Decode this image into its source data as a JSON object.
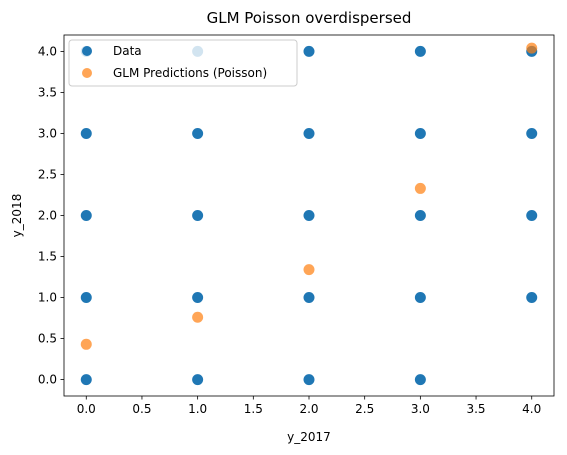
{
  "chart_data": {
    "type": "scatter",
    "title": "GLM Poisson overdispersed",
    "xlabel": "y_2017",
    "ylabel": "y_2018",
    "xlim": [
      -0.2,
      4.2
    ],
    "ylim": [
      -0.2,
      4.2
    ],
    "xticks": [
      0.0,
      0.5,
      1.0,
      1.5,
      2.0,
      2.5,
      3.0,
      3.5,
      4.0
    ],
    "yticks": [
      0.0,
      0.5,
      1.0,
      1.5,
      2.0,
      2.5,
      3.0,
      3.5,
      4.0
    ],
    "xtick_labels": [
      "0.0",
      "0.5",
      "1.0",
      "1.5",
      "2.0",
      "2.5",
      "3.0",
      "3.5",
      "4.0"
    ],
    "ytick_labels": [
      "0.0",
      "0.5",
      "1.0",
      "1.5",
      "2.0",
      "2.5",
      "3.0",
      "3.5",
      "4.0"
    ],
    "grid": false,
    "legend_position": "upper-left",
    "series": [
      {
        "name": "Data",
        "color": "#1f77b4",
        "points": [
          [
            0,
            0
          ],
          [
            0,
            1
          ],
          [
            0,
            2
          ],
          [
            0,
            3
          ],
          [
            0,
            4
          ],
          [
            1,
            0
          ],
          [
            1,
            1
          ],
          [
            1,
            2
          ],
          [
            1,
            3
          ],
          [
            1,
            4
          ],
          [
            2,
            0
          ],
          [
            2,
            1
          ],
          [
            2,
            2
          ],
          [
            2,
            3
          ],
          [
            2,
            4
          ],
          [
            3,
            0
          ],
          [
            3,
            1
          ],
          [
            3,
            2
          ],
          [
            3,
            3
          ],
          [
            3,
            4
          ],
          [
            4,
            1
          ],
          [
            4,
            2
          ],
          [
            4,
            3
          ],
          [
            4,
            4
          ]
        ]
      },
      {
        "name": "GLM Predictions (Poisson)",
        "color": "#ff7f0e",
        "alpha": 0.7,
        "points": [
          [
            0,
            0.43
          ],
          [
            1,
            0.76
          ],
          [
            2,
            1.34
          ],
          [
            3,
            2.33
          ],
          [
            4,
            4.04
          ]
        ]
      }
    ]
  }
}
